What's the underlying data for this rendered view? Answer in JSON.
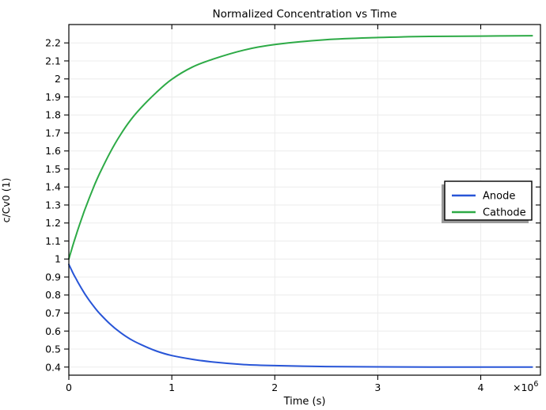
{
  "chart_data": {
    "type": "line",
    "title": "Normalized Concentration vs Time",
    "xlabel": "Time (s)",
    "ylabel": "c/Cv0 (1)",
    "x_scale": {
      "text": "×10",
      "exponent": "6"
    },
    "xlim": [
      0,
      4580000
    ],
    "ylim": [
      0.355,
      2.302
    ],
    "x_ticks": [
      0,
      1000000,
      2000000,
      3000000,
      4000000
    ],
    "x_tick_labels": [
      "0",
      "1",
      "2",
      "3",
      "4"
    ],
    "y_ticks": [
      0.4,
      0.5,
      0.6,
      0.7,
      0.8,
      0.9,
      1.0,
      1.1,
      1.2,
      1.3,
      1.4,
      1.5,
      1.6,
      1.7,
      1.8,
      1.9,
      2.0,
      2.1,
      2.2
    ],
    "y_tick_labels": [
      "0.4",
      "0.5",
      "0.6",
      "0.7",
      "0.8",
      "0.9",
      "1",
      "1.1",
      "1.2",
      "1.3",
      "1.4",
      "1.5",
      "1.6",
      "1.7",
      "1.8",
      "1.9",
      "2",
      "2.1",
      "2.2"
    ],
    "grid": true,
    "grid_color": "#ececec",
    "axis_color": "#000000",
    "legend": {
      "position": "right-middle",
      "entries": [
        {
          "label": "Anode",
          "color": "#2855d7"
        },
        {
          "label": "Cathode",
          "color": "#2daa46"
        }
      ]
    },
    "series": [
      {
        "name": "Anode",
        "color": "#2855d7",
        "x": [
          0,
          25000,
          50000,
          75000,
          100000,
          150000,
          200000,
          250000,
          300000,
          400000,
          500000,
          600000,
          700000,
          850000,
          1000000,
          1200000,
          1400000,
          1700000,
          2000000,
          2500000,
          3000000,
          3500000,
          4000000,
          4500000
        ],
        "y": [
          0.97,
          0.94,
          0.911,
          0.885,
          0.859,
          0.811,
          0.769,
          0.731,
          0.697,
          0.639,
          0.592,
          0.554,
          0.525,
          0.489,
          0.464,
          0.443,
          0.428,
          0.414,
          0.408,
          0.403,
          0.401,
          0.4,
          0.4,
          0.4
        ]
      },
      {
        "name": "Cathode",
        "color": "#2daa46",
        "x": [
          0,
          25000,
          50000,
          75000,
          100000,
          150000,
          200000,
          250000,
          300000,
          400000,
          500000,
          600000,
          700000,
          850000,
          1000000,
          1200000,
          1400000,
          1700000,
          2000000,
          2500000,
          3000000,
          3500000,
          4000000,
          4500000
        ],
        "y": [
          1.0,
          1.049,
          1.096,
          1.141,
          1.184,
          1.266,
          1.341,
          1.412,
          1.476,
          1.591,
          1.689,
          1.772,
          1.839,
          1.925,
          1.998,
          2.066,
          2.11,
          2.16,
          2.191,
          2.218,
          2.23,
          2.236,
          2.238,
          2.24
        ]
      }
    ]
  }
}
